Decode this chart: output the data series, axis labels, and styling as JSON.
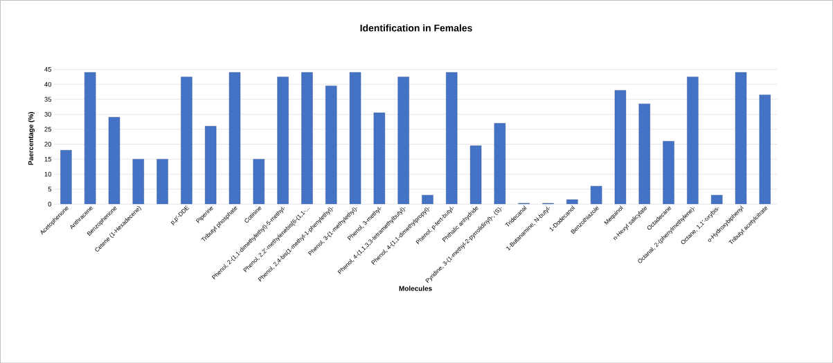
{
  "chart_data": {
    "type": "bar",
    "title": "Identification in Females",
    "xlabel": "Molecules",
    "ylabel": "Paercentage (%)",
    "categories": [
      "Acetophenone",
      "Anthracene",
      "Benzophenone",
      "Cetene  (1-Hexadecene)",
      null,
      "p,p'-DDE",
      "Piperine",
      "Tributyl phosphate",
      "Cotinine",
      "Phenol, 2-(1,1-dimethylethyl)-5-methyl-",
      "Phenol, 2,2'-methylenebis[6-(1,1-...",
      "Phenol, 2,4-bis(1-methyl-1-phenylethyl)-",
      "Phenol, 3-(1-methylethyl)-",
      "Phenol, 3-methyl-",
      "Phenol, 4-(1,1,3,3-tetramethylbutyl)-",
      "Phenol, 4-(1,1-dimethylpropyl)-",
      "Phenol, p-tert-butyl-",
      "Phthalic anhydride",
      "Pyridine, 3-(1-methyl-2-pyrrolidinyl)-, (S)-",
      "Tridecanal",
      "1-Butanamine, N-butyl-",
      "1-Dodecanol",
      "Benzothiazole",
      "Mequinol",
      "n-Hexyl salicylate",
      "Octadecane",
      "Octanal, 2-(phenylmethylene)-",
      "Octane, 1,1'-oxybis-",
      "o-Hydroxybiphenyl",
      "Tributyl acetylcitrate"
    ],
    "values": [
      18,
      44,
      29,
      15,
      15,
      42.5,
      26,
      44,
      15,
      42.5,
      44,
      39.5,
      44,
      30.5,
      42.5,
      3,
      44,
      19.5,
      27,
      0.3,
      0.3,
      1.5,
      6,
      38,
      33.5,
      21,
      42.5,
      3,
      44,
      36.5
    ],
    "color": "#4472c4",
    "ylim": [
      0,
      45
    ],
    "yticks": [
      0,
      5,
      10,
      15,
      20,
      25,
      30,
      35,
      40,
      45
    ],
    "grid": true
  }
}
